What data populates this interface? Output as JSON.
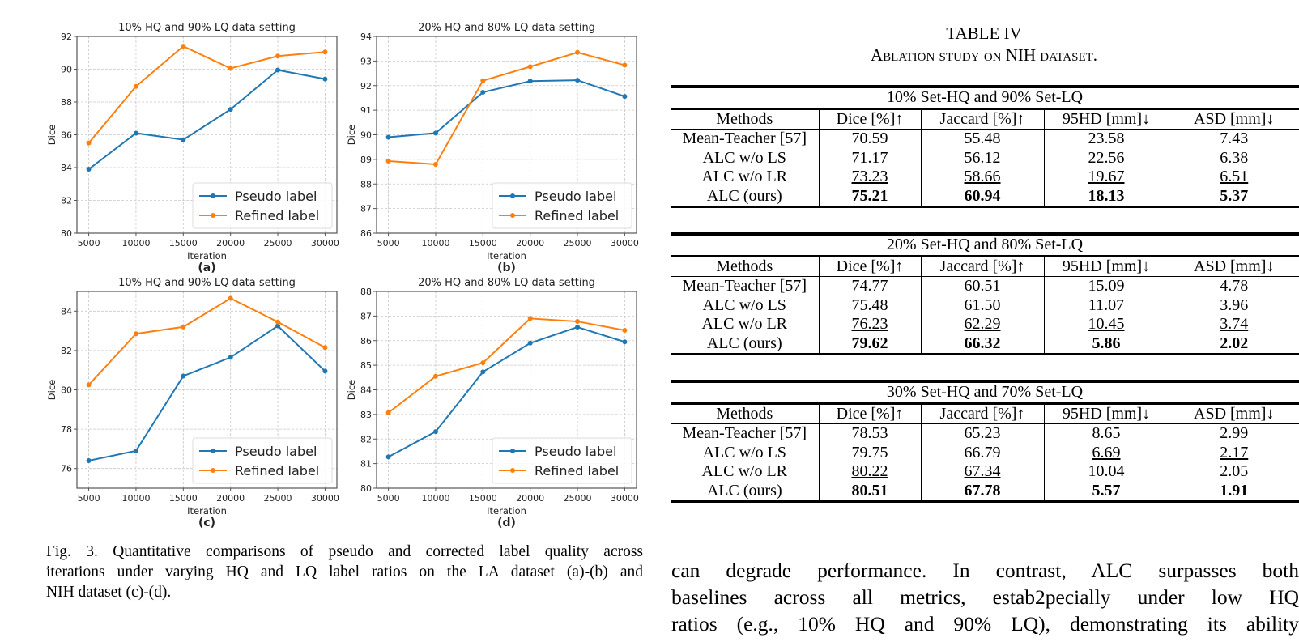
{
  "chart_data": [
    {
      "id": "a",
      "type": "line",
      "title": "10% HQ and 90% LQ data setting",
      "panel_label": "(a)",
      "xlabel": "Iteration",
      "ylabel": "Dice",
      "x": [
        5000,
        10000,
        15000,
        20000,
        25000,
        30000
      ],
      "xticks": [
        "5000",
        "10000",
        "15000",
        "20000",
        "25000",
        "30000"
      ],
      "ylim": [
        80,
        92
      ],
      "yticks": [
        80,
        82,
        84,
        86,
        88,
        90,
        92
      ],
      "grid": true,
      "legend_position": "lower-right",
      "series": [
        {
          "name": "Pseudo label",
          "color": "#1f77b4",
          "values": [
            83.9,
            86.1,
            85.7,
            87.55,
            89.95,
            89.4
          ]
        },
        {
          "name": "Refined label",
          "color": "#ff7f0e",
          "values": [
            85.5,
            88.95,
            91.4,
            90.05,
            90.8,
            91.05
          ]
        }
      ]
    },
    {
      "id": "b",
      "type": "line",
      "title": "20% HQ and 80% LQ data setting",
      "panel_label": "(b)",
      "xlabel": "Iteration",
      "ylabel": "Dice",
      "x": [
        5000,
        10000,
        15000,
        20000,
        25000,
        30000
      ],
      "xticks": [
        "5000",
        "10000",
        "15000",
        "20000",
        "25000",
        "30000"
      ],
      "ylim": [
        86,
        94
      ],
      "yticks": [
        86,
        87,
        88,
        89,
        90,
        91,
        92,
        93,
        94
      ],
      "grid": true,
      "legend_position": "lower-right",
      "series": [
        {
          "name": "Pseudo label",
          "color": "#1f77b4",
          "values": [
            89.9,
            90.07,
            91.73,
            92.18,
            92.22,
            91.56
          ]
        },
        {
          "name": "Refined label",
          "color": "#ff7f0e",
          "values": [
            88.93,
            88.8,
            92.2,
            92.77,
            93.35,
            92.83
          ]
        }
      ]
    },
    {
      "id": "c",
      "type": "line",
      "title": "10% HQ and 90% LQ data setting",
      "panel_label": "(c)",
      "xlabel": "Iteration",
      "ylabel": "Dice",
      "x": [
        5000,
        10000,
        15000,
        20000,
        25000,
        30000
      ],
      "xticks": [
        "5000",
        "10000",
        "15000",
        "20000",
        "25000",
        "30000"
      ],
      "ylim": [
        75,
        85
      ],
      "yticks": [
        76,
        78,
        80,
        82,
        84
      ],
      "grid": true,
      "legend_position": "lower-right",
      "series": [
        {
          "name": "Pseudo label",
          "color": "#1f77b4",
          "values": [
            76.4,
            76.9,
            80.7,
            81.65,
            83.25,
            80.95
          ]
        },
        {
          "name": "Refined label",
          "color": "#ff7f0e",
          "values": [
            80.25,
            82.85,
            83.2,
            84.65,
            83.45,
            82.15
          ]
        }
      ]
    },
    {
      "id": "d",
      "type": "line",
      "title": "20% HQ and 80% LQ data setting",
      "panel_label": "(d)",
      "xlabel": "Iteration",
      "ylabel": "Dice",
      "x": [
        5000,
        10000,
        15000,
        20000,
        25000,
        30000
      ],
      "xticks": [
        "5000",
        "10000",
        "15000",
        "20000",
        "25000",
        "30000"
      ],
      "ylim": [
        80,
        88
      ],
      "yticks": [
        80,
        81,
        82,
        83,
        84,
        85,
        86,
        87,
        88
      ],
      "grid": true,
      "legend_position": "lower-right",
      "series": [
        {
          "name": "Pseudo label",
          "color": "#1f77b4",
          "values": [
            81.27,
            82.3,
            84.73,
            85.9,
            86.55,
            85.95
          ]
        },
        {
          "name": "Refined label",
          "color": "#ff7f0e",
          "values": [
            83.07,
            84.55,
            85.1,
            86.9,
            86.78,
            86.42
          ]
        }
      ]
    }
  ],
  "caption": {
    "line1": "Fig. 3.  Quantitative comparisons of pseudo and corrected label quality across",
    "line2": "iterations under varying HQ and LQ label ratios on the LA dataset (a)-(b) and",
    "line3": "NIH dataset (c)-(d)."
  },
  "table": {
    "number": "TABLE IV",
    "title": "Ablation study on NIH dataset.",
    "columns": [
      "Methods",
      "Dice [%]↑",
      "Jaccard [%]↑",
      "95HD [mm]↓",
      "ASD [mm]↓"
    ],
    "sections": [
      {
        "heading": "10% Set-HQ and 90% Set-LQ",
        "rows": [
          {
            "method": "Mean-Teacher [57]",
            "values": [
              "70.59",
              "55.48",
              "23.58",
              "7.43"
            ],
            "style": [
              "",
              "",
              "",
              ""
            ]
          },
          {
            "method": "ALC w/o LS",
            "values": [
              "71.17",
              "56.12",
              "22.56",
              "6.38"
            ],
            "style": [
              "",
              "",
              "",
              ""
            ]
          },
          {
            "method": "ALC w/o LR",
            "values": [
              "73.23",
              "58.66",
              "19.67",
              "6.51"
            ],
            "style": [
              "u",
              "u",
              "u",
              "u"
            ]
          },
          {
            "method": "ALC (ours)",
            "values": [
              "75.21",
              "60.94",
              "18.13",
              "5.37"
            ],
            "style": [
              "b",
              "b",
              "b",
              "b"
            ]
          }
        ]
      },
      {
        "heading": "20% Set-HQ and 80% Set-LQ",
        "rows": [
          {
            "method": "Mean-Teacher [57]",
            "values": [
              "74.77",
              "60.51",
              "15.09",
              "4.78"
            ],
            "style": [
              "",
              "",
              "",
              ""
            ]
          },
          {
            "method": "ALC w/o LS",
            "values": [
              "75.48",
              "61.50",
              "11.07",
              "3.96"
            ],
            "style": [
              "",
              "",
              "",
              ""
            ]
          },
          {
            "method": "ALC w/o LR",
            "values": [
              "76.23",
              "62.29",
              "10.45",
              "3.74"
            ],
            "style": [
              "u",
              "u",
              "u",
              "u"
            ]
          },
          {
            "method": "ALC (ours)",
            "values": [
              "79.62",
              "66.32",
              "5.86",
              "2.02"
            ],
            "style": [
              "b",
              "b",
              "b",
              "b"
            ]
          }
        ]
      },
      {
        "heading": "30% Set-HQ and 70% Set-LQ",
        "rows": [
          {
            "method": "Mean-Teacher [57]",
            "values": [
              "78.53",
              "65.23",
              "8.65",
              "2.99"
            ],
            "style": [
              "",
              "",
              "",
              ""
            ]
          },
          {
            "method": "ALC w/o LS",
            "values": [
              "79.75",
              "66.79",
              "6.69",
              "2.17"
            ],
            "style": [
              "",
              "",
              "u",
              "u"
            ]
          },
          {
            "method": "ALC w/o LR",
            "values": [
              "80.22",
              "67.34",
              "10.04",
              "2.05"
            ],
            "style": [
              "u",
              "u",
              "",
              ""
            ]
          },
          {
            "method": "ALC (ours)",
            "values": [
              "80.51",
              "67.78",
              "5.57",
              "1.91"
            ],
            "style": [
              "b",
              "b",
              "b",
              "b"
            ]
          }
        ]
      }
    ]
  },
  "body_text": {
    "line1": "can degrade performance. In contrast, ALC surpasses both",
    "line2": "baselines across all metrics, estab2pecially under low HQ",
    "line3": "ratios (e.g., 10% HQ and 90% LQ), demonstrating its ability"
  }
}
